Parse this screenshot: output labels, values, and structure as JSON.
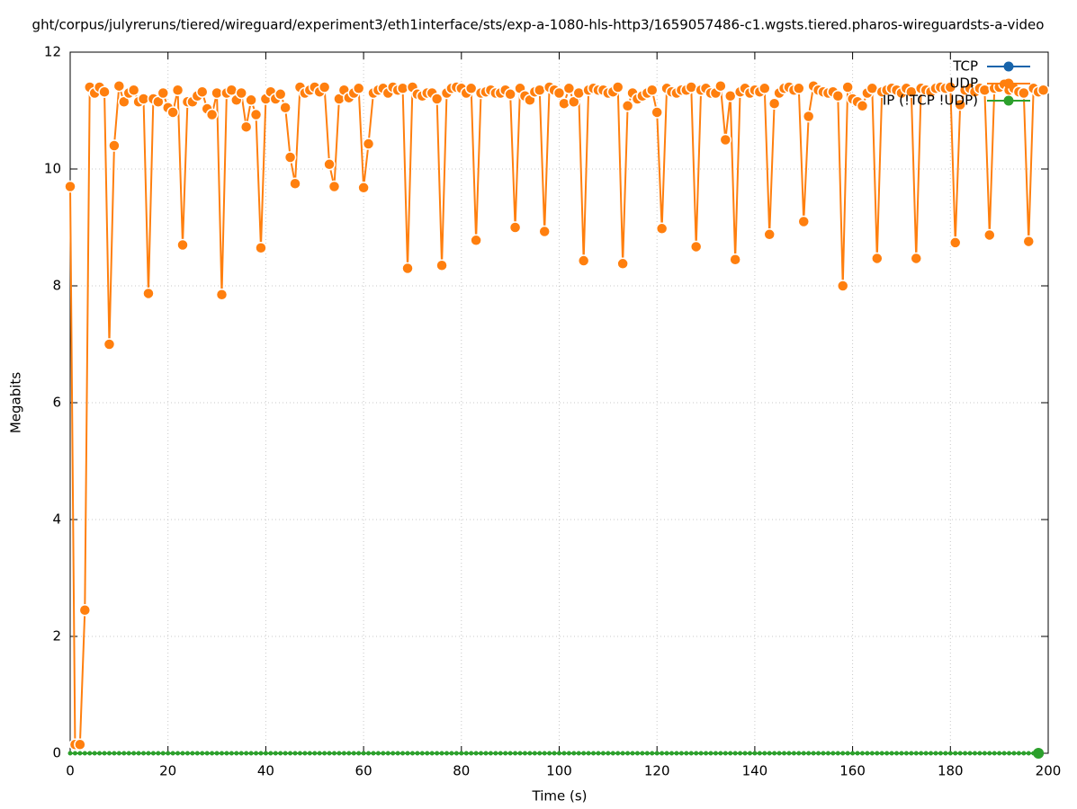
{
  "chart_data": {
    "type": "line",
    "title": "ght/corpus/julyreruns/tiered/wireguard/experiment3/eth1interface/sts/exp-a-1080-hls-http3/1659057486-c1.wgsts.tiered.pharos-wireguardsts-a-video",
    "xlabel": "Time (s)",
    "ylabel": "Megabits",
    "xlim": [
      0,
      200
    ],
    "ylim": [
      0,
      12
    ],
    "xticks": [
      0,
      20,
      40,
      60,
      80,
      100,
      120,
      140,
      160,
      180,
      200
    ],
    "yticks": [
      0,
      2,
      4,
      6,
      8,
      10,
      12
    ],
    "grid": true,
    "legend": "top right",
    "x": [
      0,
      1,
      2,
      3,
      4,
      5,
      6,
      7,
      8,
      9,
      10,
      11,
      12,
      13,
      14,
      15,
      16,
      17,
      18,
      19,
      20,
      21,
      22,
      23,
      24,
      25,
      26,
      27,
      28,
      29,
      30,
      31,
      32,
      33,
      34,
      35,
      36,
      37,
      38,
      39,
      40,
      41,
      42,
      43,
      44,
      45,
      46,
      47,
      48,
      49,
      50,
      51,
      52,
      53,
      54,
      55,
      56,
      57,
      58,
      59,
      60,
      61,
      62,
      63,
      64,
      65,
      66,
      67,
      68,
      69,
      70,
      71,
      72,
      73,
      74,
      75,
      76,
      77,
      78,
      79,
      80,
      81,
      82,
      83,
      84,
      85,
      86,
      87,
      88,
      89,
      90,
      91,
      92,
      93,
      94,
      95,
      96,
      97,
      98,
      99,
      100,
      101,
      102,
      103,
      104,
      105,
      106,
      107,
      108,
      109,
      110,
      111,
      112,
      113,
      114,
      115,
      116,
      117,
      118,
      119,
      120,
      121,
      122,
      123,
      124,
      125,
      126,
      127,
      128,
      129,
      130,
      131,
      132,
      133,
      134,
      135,
      136,
      137,
      138,
      139,
      140,
      141,
      142,
      143,
      144,
      145,
      146,
      147,
      148,
      149,
      150,
      151,
      152,
      153,
      154,
      155,
      156,
      157,
      158,
      159,
      160,
      161,
      162,
      163,
      164,
      165,
      166,
      167,
      168,
      169,
      170,
      171,
      172,
      173,
      174,
      175,
      176,
      177,
      178,
      179,
      180,
      181,
      182,
      183,
      184,
      185,
      186,
      187,
      188,
      189,
      190,
      191,
      192,
      193,
      194,
      195,
      196,
      197,
      198,
      199
    ],
    "series": [
      {
        "name": "TCP",
        "color": "#1764ab",
        "values": [
          null,
          null,
          null,
          null,
          null,
          null,
          null,
          null,
          null,
          null,
          null,
          null,
          null,
          null,
          null,
          null,
          null,
          null,
          null,
          null,
          null,
          null,
          null,
          null,
          null,
          null,
          null,
          null,
          null,
          null,
          null,
          null,
          null,
          null,
          null,
          null,
          null,
          null,
          null,
          null,
          null,
          null,
          null,
          null,
          null,
          null,
          null,
          null,
          null,
          null,
          null,
          null,
          null,
          null,
          null,
          null,
          null,
          null,
          null,
          null,
          null,
          null,
          null,
          null,
          null,
          null,
          null,
          null,
          null,
          null,
          null,
          null,
          null,
          null,
          null,
          null,
          null,
          null,
          null,
          null,
          null,
          null,
          null,
          null,
          null,
          null,
          null,
          null,
          null,
          null,
          null,
          null,
          null,
          null,
          null,
          null,
          null,
          null,
          null,
          null,
          null,
          null,
          null,
          null,
          null,
          null,
          null,
          null,
          null,
          null,
          null,
          null,
          null,
          null,
          null,
          null,
          null,
          null,
          null,
          null,
          null,
          null,
          null,
          null,
          null,
          null,
          null,
          null,
          null,
          null,
          null,
          null,
          null,
          null,
          null,
          null,
          null,
          null,
          null,
          null,
          null,
          null,
          null,
          null,
          null,
          null,
          null,
          null,
          null,
          null,
          null,
          null,
          null,
          null,
          null,
          null,
          null,
          null,
          null,
          null,
          null,
          null,
          null,
          null,
          null,
          null,
          null,
          null,
          null,
          null,
          null,
          null,
          null,
          null,
          null,
          null,
          null,
          null,
          null,
          null,
          null,
          null,
          null,
          null,
          null,
          null,
          null,
          null,
          null,
          null,
          null,
          null,
          null,
          null,
          null,
          null,
          null,
          null,
          null,
          null
        ]
      },
      {
        "name": "UDP",
        "color": "#ff7f0e",
        "values": [
          9.7,
          0.15,
          0.15,
          2.45,
          11.4,
          11.3,
          11.4,
          11.32,
          7.0,
          10.4,
          11.42,
          11.15,
          11.3,
          11.35,
          11.15,
          11.2,
          7.87,
          11.2,
          11.15,
          11.3,
          11.05,
          10.97,
          11.35,
          8.7,
          11.15,
          11.15,
          11.25,
          11.32,
          11.03,
          10.93,
          11.3,
          7.85,
          11.3,
          11.35,
          11.18,
          11.3,
          10.72,
          11.18,
          10.93,
          8.65,
          11.2,
          11.32,
          11.2,
          11.28,
          11.05,
          10.2,
          9.75,
          11.4,
          11.3,
          11.35,
          11.4,
          11.32,
          11.4,
          10.08,
          9.7,
          11.2,
          11.35,
          11.22,
          11.3,
          11.38,
          9.68,
          10.43,
          11.3,
          11.35,
          11.38,
          11.3,
          11.4,
          11.35,
          11.38,
          8.3,
          11.4,
          11.28,
          11.25,
          11.3,
          11.3,
          11.2,
          8.35,
          11.3,
          11.38,
          11.4,
          11.38,
          11.3,
          11.38,
          8.78,
          11.3,
          11.32,
          11.35,
          11.3,
          11.3,
          11.35,
          11.28,
          9.0,
          11.38,
          11.25,
          11.18,
          11.32,
          11.35,
          8.93,
          11.4,
          11.35,
          11.3,
          11.12,
          11.38,
          11.15,
          11.3,
          8.43,
          11.35,
          11.38,
          11.35,
          11.35,
          11.3,
          11.32,
          11.4,
          8.38,
          11.08,
          11.3,
          11.2,
          11.25,
          11.3,
          11.35,
          10.97,
          8.98,
          11.38,
          11.32,
          11.3,
          11.35,
          11.35,
          11.4,
          8.67,
          11.35,
          11.38,
          11.3,
          11.3,
          11.42,
          10.5,
          11.25,
          8.45,
          11.32,
          11.38,
          11.3,
          11.35,
          11.32,
          11.38,
          8.88,
          11.12,
          11.3,
          11.38,
          11.4,
          11.35,
          11.38,
          9.1,
          10.9,
          11.42,
          11.35,
          11.32,
          11.3,
          11.32,
          11.25,
          8.0,
          11.4,
          11.2,
          11.15,
          11.08,
          11.3,
          11.38,
          8.47,
          11.32,
          11.35,
          11.38,
          11.35,
          11.3,
          11.38,
          11.32,
          8.47,
          11.38,
          11.35,
          11.32,
          11.38,
          11.4,
          11.38,
          11.4,
          8.74,
          11.1,
          11.35,
          11.38,
          11.32,
          11.38,
          11.35,
          8.87,
          11.38,
          11.4,
          11.45,
          11.35,
          11.38,
          11.32,
          11.3,
          8.76,
          11.38,
          11.32,
          11.35
        ]
      },
      {
        "name": "IP (!TCP  !UDP)",
        "color": "#2ca02c",
        "values": [
          0,
          0,
          0,
          0,
          0,
          0,
          0,
          0,
          0,
          0,
          0,
          0,
          0,
          0,
          0,
          0,
          0,
          0,
          0,
          0,
          0,
          0,
          0,
          0,
          0,
          0,
          0,
          0,
          0,
          0,
          0,
          0,
          0,
          0,
          0,
          0,
          0,
          0,
          0,
          0,
          0,
          0,
          0,
          0,
          0,
          0,
          0,
          0,
          0,
          0,
          0,
          0,
          0,
          0,
          0,
          0,
          0,
          0,
          0,
          0,
          0,
          0,
          0,
          0,
          0,
          0,
          0,
          0,
          0,
          0,
          0,
          0,
          0,
          0,
          0,
          0,
          0,
          0,
          0,
          0,
          0,
          0,
          0,
          0,
          0,
          0,
          0,
          0,
          0,
          0,
          0,
          0,
          0,
          0,
          0,
          0,
          0,
          0,
          0,
          0,
          0,
          0,
          0,
          0,
          0,
          0,
          0,
          0,
          0,
          0,
          0,
          0,
          0,
          0,
          0,
          0,
          0,
          0,
          0,
          0,
          0,
          0,
          0,
          0,
          0,
          0,
          0,
          0,
          0,
          0,
          0,
          0,
          0,
          0,
          0,
          0,
          0,
          0,
          0,
          0,
          0,
          0,
          0,
          0,
          0,
          0,
          0,
          0,
          0,
          0,
          0,
          0,
          0,
          0,
          0,
          0,
          0,
          0,
          0,
          0,
          0,
          0,
          0,
          0,
          0,
          0,
          0,
          0,
          0,
          0,
          0,
          0,
          0,
          0,
          0,
          0,
          0,
          0,
          0,
          0,
          0,
          0,
          0,
          0,
          0,
          0,
          0,
          0,
          0,
          0,
          0,
          0,
          0,
          0,
          0,
          0,
          0,
          0,
          0,
          null
        ]
      }
    ]
  }
}
